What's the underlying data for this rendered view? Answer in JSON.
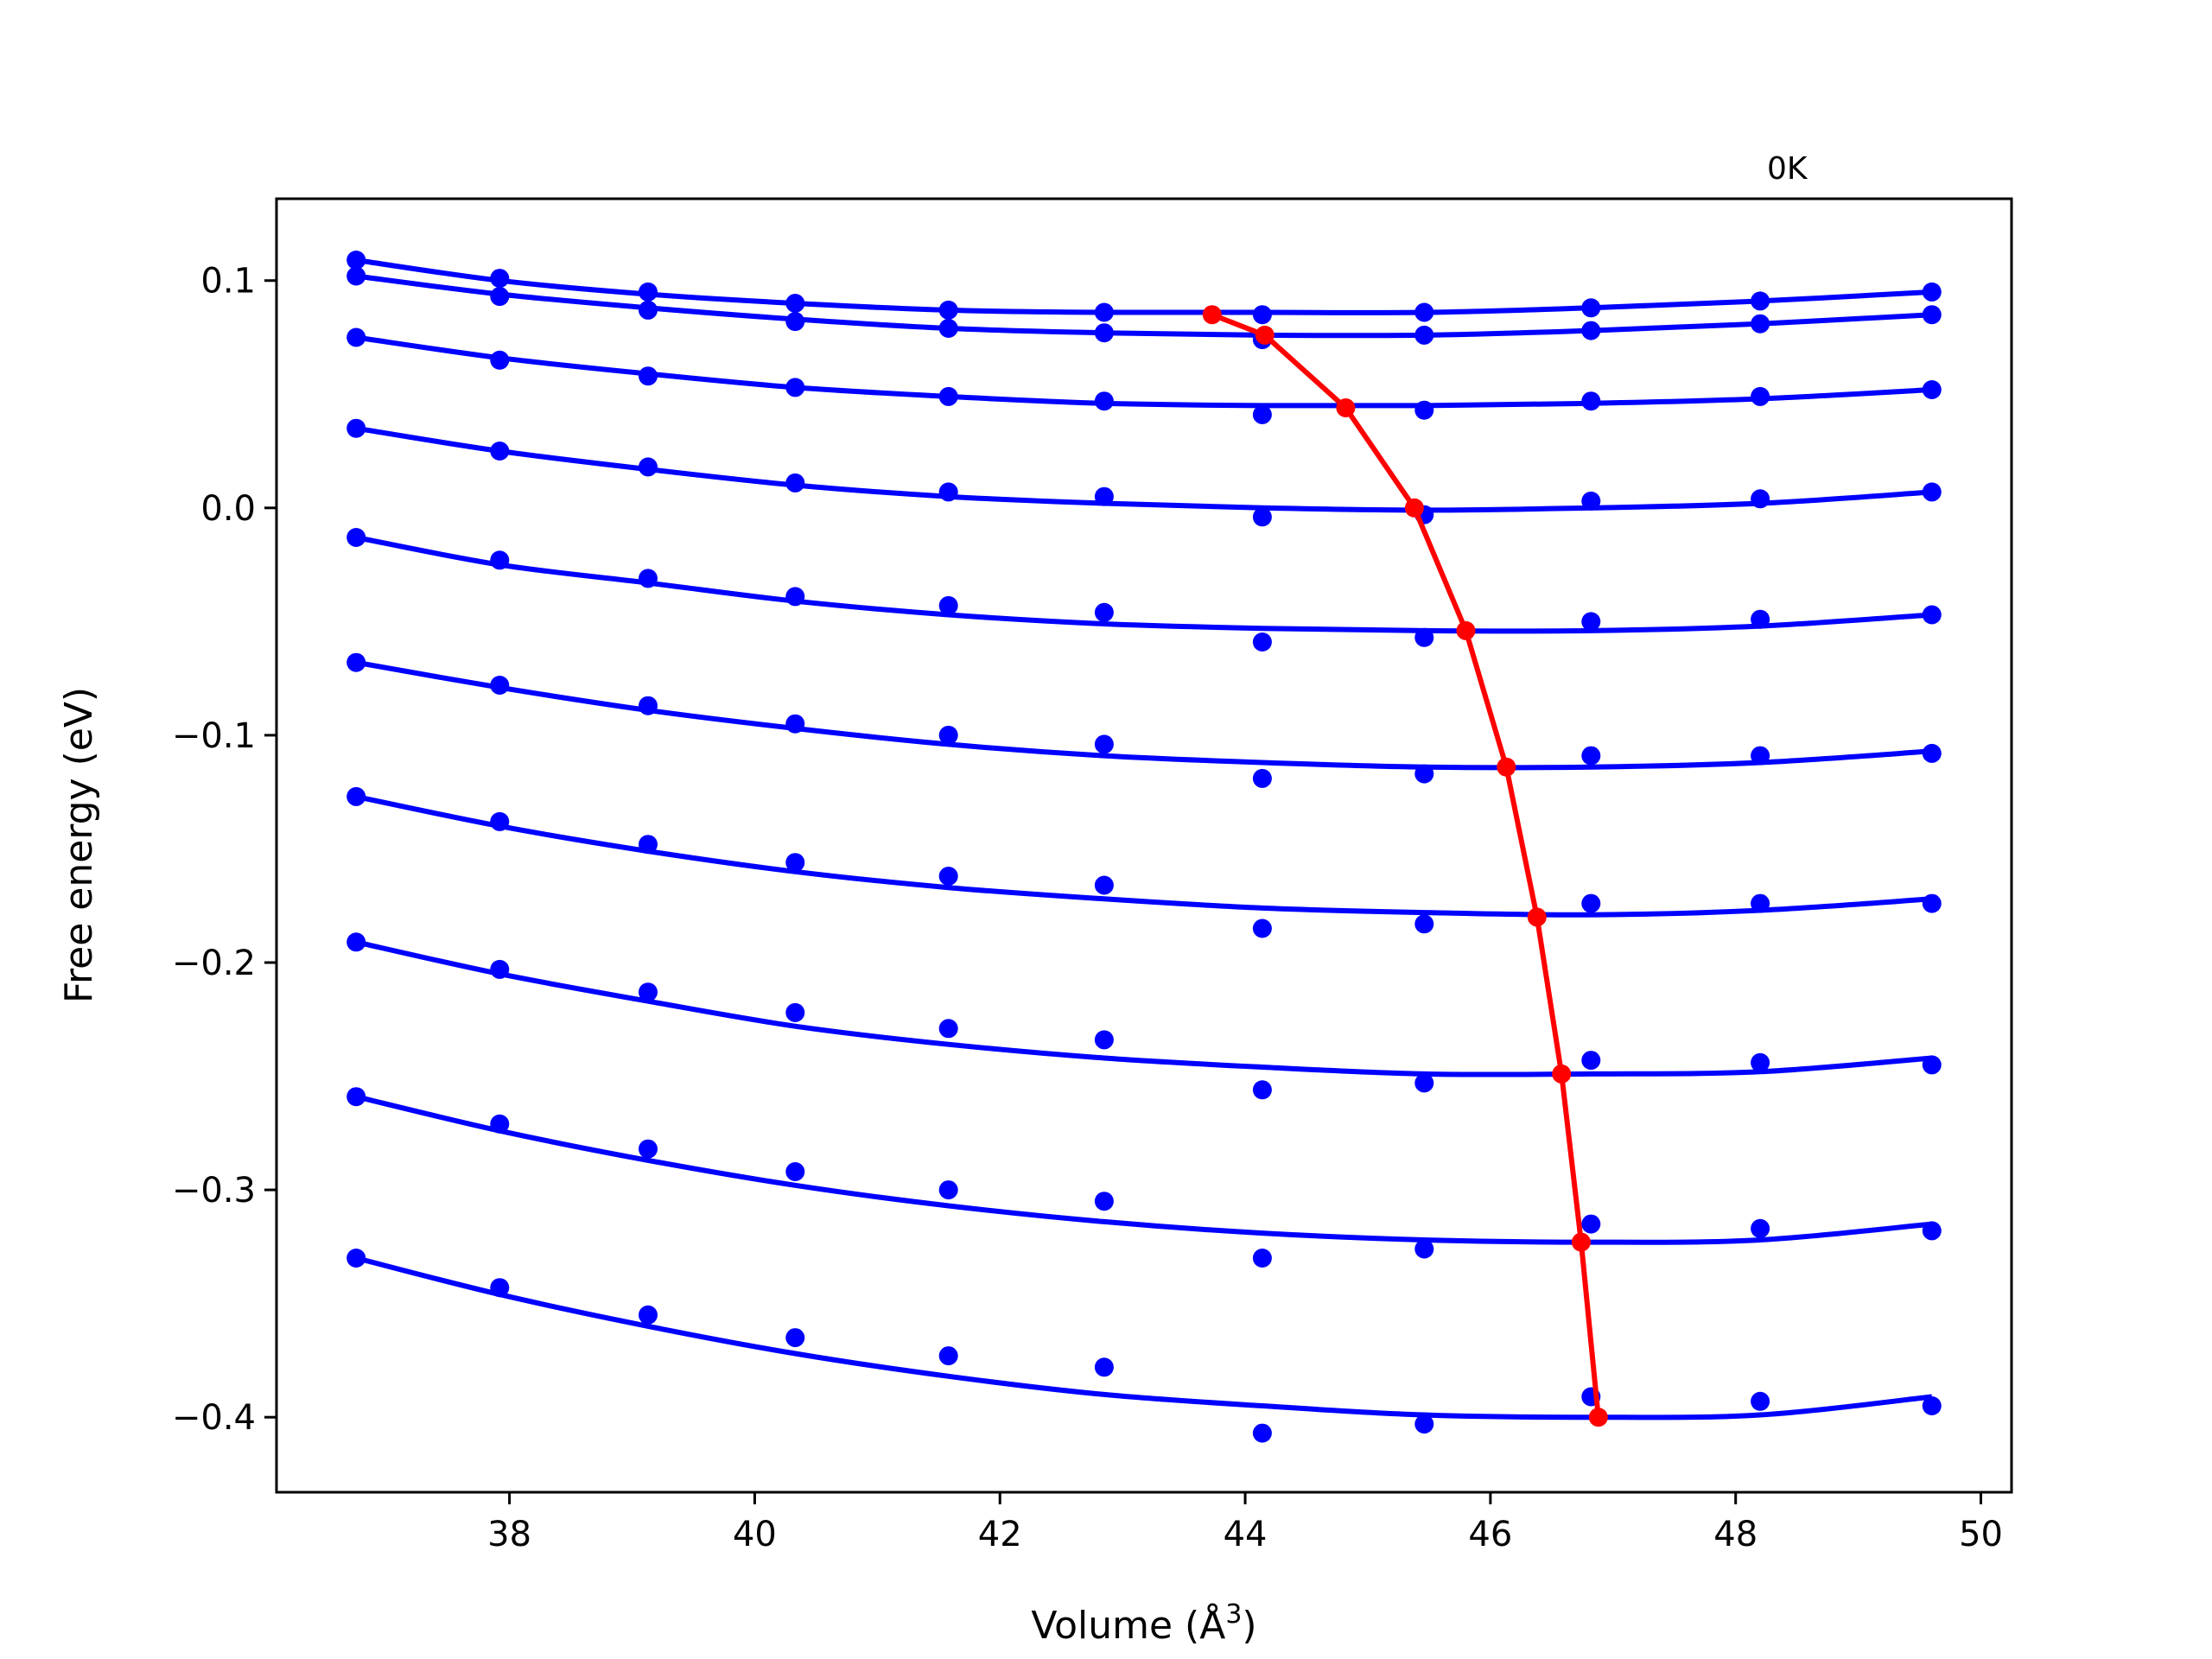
{
  "chart_data": {
    "type": "line",
    "corner_label": "0K",
    "xlabel": "Volume (Å",
    "xlabel_sup": "3",
    "xlabel_close": ")",
    "ylabel": "Free energy (eV)",
    "xlim": [
      36.1,
      50.25
    ],
    "ylim": [
      -0.433,
      0.136
    ],
    "x_ticks": [
      38,
      40,
      42,
      44,
      46,
      48,
      50
    ],
    "x_tick_labels": [
      "38",
      "40",
      "42",
      "44",
      "46",
      "48",
      "50"
    ],
    "y_ticks": [
      0.1,
      0.0,
      -0.1,
      -0.2,
      -0.3,
      -0.4
    ],
    "y_tick_labels": [
      "0.1",
      "0.0",
      "−0.1",
      "−0.2",
      "−0.3",
      "−0.4"
    ],
    "grid": false,
    "colors": {
      "curves": "#0000ff",
      "minima": "#ff0000",
      "frame": "#000000"
    },
    "x": [
      36.75,
      37.92,
      39.13,
      40.33,
      41.58,
      42.85,
      44.14,
      45.46,
      46.82,
      48.2,
      49.6
    ],
    "series": [
      {
        "values": [
          0.109,
          0.101,
          0.095,
          0.09,
          0.087,
          0.086,
          0.085,
          0.086,
          0.088,
          0.091,
          0.095
        ],
        "fit": [
          0.109,
          0.1,
          0.094,
          0.09,
          0.087,
          0.086,
          0.086,
          0.086,
          0.088,
          0.091,
          0.095
        ]
      },
      {
        "values": [
          0.102,
          0.093,
          0.087,
          0.082,
          0.079,
          0.077,
          0.074,
          0.076,
          0.078,
          0.081,
          0.085
        ],
        "fit": [
          0.102,
          0.094,
          0.088,
          0.083,
          0.079,
          0.077,
          0.076,
          0.076,
          0.078,
          0.081,
          0.085
        ]
      },
      {
        "values": [
          0.075,
          0.065,
          0.058,
          0.053,
          0.049,
          0.047,
          0.041,
          0.043,
          0.047,
          0.049,
          0.052
        ],
        "fit": [
          0.075,
          0.066,
          0.059,
          0.053,
          0.049,
          0.046,
          0.045,
          0.045,
          0.046,
          0.048,
          0.052
        ]
      },
      {
        "values": [
          0.035,
          0.025,
          0.018,
          0.011,
          0.007,
          0.005,
          -0.004,
          -0.003,
          0.003,
          0.004,
          0.007
        ],
        "fit": [
          0.035,
          0.025,
          0.017,
          0.01,
          0.005,
          0.002,
          0.0,
          -0.001,
          0.0,
          0.002,
          0.007
        ]
      },
      {
        "values": [
          -0.013,
          -0.023,
          -0.031,
          -0.039,
          -0.043,
          -0.046,
          -0.059,
          -0.057,
          -0.05,
          -0.049,
          -0.047
        ],
        "fit": [
          -0.013,
          -0.025,
          -0.033,
          -0.041,
          -0.047,
          -0.051,
          -0.053,
          -0.054,
          -0.054,
          -0.052,
          -0.047
        ]
      },
      {
        "values": [
          -0.068,
          -0.078,
          -0.087,
          -0.095,
          -0.1,
          -0.104,
          -0.119,
          -0.117,
          -0.109,
          -0.109,
          -0.108
        ],
        "fit": [
          -0.068,
          -0.079,
          -0.089,
          -0.097,
          -0.104,
          -0.109,
          -0.112,
          -0.114,
          -0.114,
          -0.112,
          -0.107
        ]
      },
      {
        "values": [
          -0.127,
          -0.138,
          -0.148,
          -0.156,
          -0.162,
          -0.166,
          -0.185,
          -0.183,
          -0.174,
          -0.174,
          -0.174
        ],
        "fit": [
          -0.127,
          -0.14,
          -0.151,
          -0.16,
          -0.167,
          -0.172,
          -0.176,
          -0.178,
          -0.179,
          -0.177,
          -0.172
        ]
      },
      {
        "values": [
          -0.191,
          -0.203,
          -0.213,
          -0.222,
          -0.229,
          -0.234,
          -0.256,
          -0.253,
          -0.243,
          -0.244,
          -0.245
        ],
        "fit": [
          -0.191,
          -0.205,
          -0.217,
          -0.228,
          -0.236,
          -0.242,
          -0.246,
          -0.249,
          -0.249,
          -0.248,
          -0.242
        ]
      },
      {
        "values": [
          -0.259,
          -0.271,
          -0.282,
          -0.292,
          -0.3,
          -0.305,
          -0.33,
          -0.326,
          -0.315,
          -0.317,
          -0.318
        ],
        "fit": [
          -0.259,
          -0.274,
          -0.287,
          -0.298,
          -0.307,
          -0.314,
          -0.319,
          -0.322,
          -0.323,
          -0.322,
          -0.315
        ]
      },
      {
        "values": [
          -0.33,
          -0.343,
          -0.355,
          -0.365,
          -0.373,
          -0.378,
          -0.407,
          -0.403,
          -0.391,
          -0.393,
          -0.395
        ],
        "fit": [
          -0.33,
          -0.346,
          -0.36,
          -0.372,
          -0.382,
          -0.39,
          -0.395,
          -0.399,
          -0.4,
          -0.399,
          -0.391
        ]
      }
    ],
    "minima": {
      "x": [
        43.73,
        44.16,
        44.82,
        45.38,
        45.8,
        46.13,
        46.38,
        46.58,
        46.74,
        46.88
      ],
      "y": [
        0.085,
        0.076,
        0.044,
        0.0,
        -0.054,
        -0.114,
        -0.18,
        -0.249,
        -0.323,
        -0.4
      ]
    }
  }
}
